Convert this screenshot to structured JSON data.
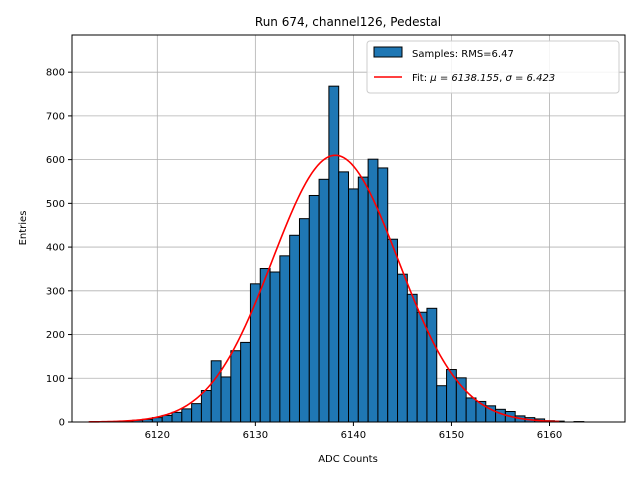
{
  "chart_data": {
    "type": "bar",
    "title": "Run 674, channel126, Pedestal",
    "xlabel": "ADC Counts",
    "ylabel": "Entries",
    "xlim": [
      6111.3,
      6167.7
    ],
    "ylim": [
      0,
      885
    ],
    "xticks": [
      6120,
      6130,
      6140,
      6150,
      6160
    ],
    "yticks": [
      0,
      100,
      200,
      300,
      400,
      500,
      600,
      700,
      800
    ],
    "grid": true,
    "legend_position": "top-right",
    "histogram": {
      "name": "Samples: RMS=6.47",
      "color": "#1f77b4",
      "bin_width": 1,
      "bin_start": 6113.5,
      "values": [
        0,
        0,
        1,
        2,
        4,
        6,
        10,
        15,
        22,
        30,
        42,
        72,
        140,
        103,
        163,
        182,
        316,
        351,
        343,
        380,
        427,
        465,
        518,
        555,
        768,
        572,
        533,
        560,
        601,
        581,
        418,
        338,
        292,
        251,
        260,
        83,
        120,
        101,
        55,
        47,
        37,
        29,
        24,
        14,
        10,
        7,
        3,
        2,
        0,
        1,
        0,
        0,
        0
      ]
    },
    "fit": {
      "name": "Fit: μ = 6138.155, σ = 6.423",
      "label_prefix": "Fit: ",
      "mu_label": "μ = 6138.155",
      "sigma_label": "σ = 6.423",
      "color": "#ff0000",
      "mu": 6138.155,
      "sigma": 6.423,
      "amplitude": 610,
      "x_range": [
        6113,
        6161
      ]
    }
  }
}
